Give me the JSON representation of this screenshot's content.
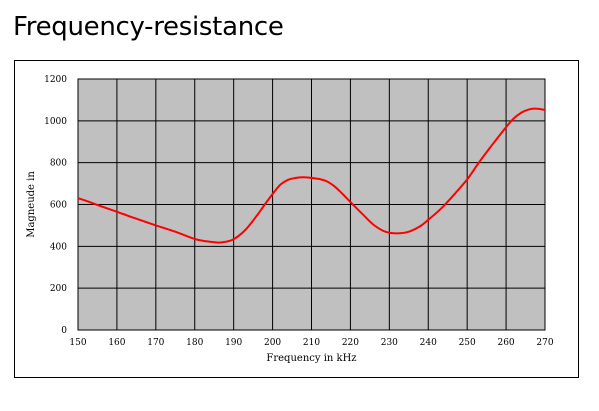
{
  "slide": {
    "title": "Frequency-resistance"
  },
  "chart_data": {
    "type": "line",
    "title": "",
    "xlabel": "Frequency in kHz",
    "ylabel": "Magneude in",
    "xlim": [
      150,
      270
    ],
    "ylim": [
      0,
      1200
    ],
    "xticks": [
      150,
      160,
      170,
      180,
      190,
      200,
      210,
      220,
      230,
      240,
      250,
      260,
      270
    ],
    "yticks": [
      0,
      200,
      400,
      600,
      800,
      1000,
      1200
    ],
    "grid": true,
    "legend": "none",
    "plot_background": "#c0c0c0",
    "series": [
      {
        "color": "#ff0000",
        "x": [
          150,
          152,
          155,
          160,
          165,
          170,
          175,
          180,
          183,
          186,
          188,
          190,
          193,
          196,
          198,
          200,
          202,
          204,
          206,
          208,
          210,
          212,
          214,
          216,
          218,
          220,
          223,
          226,
          229,
          232,
          235,
          238,
          240,
          243,
          246,
          250,
          253,
          256,
          260,
          262,
          264,
          266,
          268,
          270
        ],
        "y": [
          630,
          618,
          598,
          565,
          532,
          500,
          470,
          435,
          424,
          418,
          422,
          434,
          478,
          548,
          600,
          650,
          695,
          718,
          727,
          730,
          727,
          722,
          710,
          685,
          650,
          612,
          556,
          502,
          470,
          462,
          470,
          497,
          527,
          575,
          634,
          720,
          800,
          875,
          970,
          1012,
          1040,
          1055,
          1058,
          1052
        ]
      }
    ]
  }
}
